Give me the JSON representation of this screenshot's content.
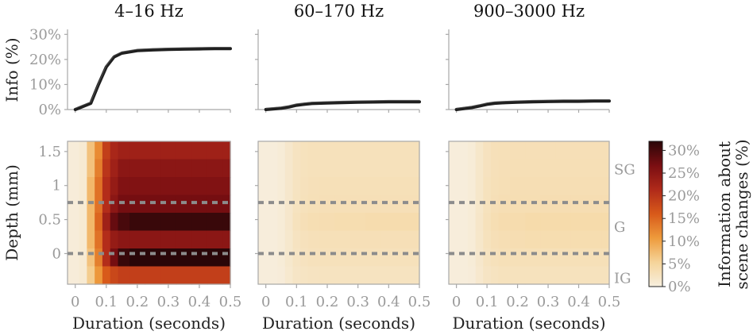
{
  "chart_data": {
    "type": "line+heatmap",
    "panel_titles": [
      "4–16 Hz",
      "60–170 Hz",
      "900–3000 Hz"
    ],
    "line_panels": {
      "ylabel": "Info (%)",
      "yticks": [
        "0%",
        "10%",
        "20%",
        "30%"
      ],
      "ylim": [
        0,
        32
      ],
      "x": [
        0,
        0.05,
        0.075,
        0.1,
        0.125,
        0.15,
        0.2,
        0.25,
        0.3,
        0.35,
        0.4,
        0.45,
        0.5
      ],
      "series": [
        {
          "values": [
            0,
            2.5,
            10,
            17,
            21,
            22.5,
            23.5,
            23.8,
            24,
            24.1,
            24.2,
            24.3,
            24.3
          ]
        },
        {
          "values": [
            0,
            0.5,
            1,
            1.7,
            2.1,
            2.4,
            2.6,
            2.8,
            2.9,
            3.0,
            3.1,
            3.1,
            3.1
          ]
        },
        {
          "values": [
            0,
            0.8,
            1.4,
            2.1,
            2.5,
            2.7,
            2.9,
            3.1,
            3.2,
            3.3,
            3.3,
            3.4,
            3.4
          ]
        }
      ]
    },
    "heatmap_panels": {
      "xlabel": "Duration (seconds)",
      "xticks": [
        "0",
        "0.1",
        "0.2",
        "0.3",
        "0.4",
        "0.5"
      ],
      "xlim": [
        -0.025,
        0.5
      ],
      "ylabel": "Depth (mm)",
      "yticks": [
        "0",
        "0.5",
        "1",
        "1.5"
      ],
      "ylim": [
        -0.45,
        1.65
      ],
      "dashed_lines_at_depth": [
        0,
        0.75
      ],
      "layer_labels": [
        "SG",
        "G",
        "IG"
      ],
      "columns_x": [
        0,
        0.025,
        0.05,
        0.075,
        0.1,
        0.125,
        0.15,
        0.2,
        0.25,
        0.3,
        0.35,
        0.4,
        0.45,
        0.5
      ],
      "rows_depth": [
        1.5,
        1.25,
        1.0,
        0.75,
        0.5,
        0.25,
        0.0,
        -0.25
      ],
      "panels": [
        {
          "values": [
            [
              0.5,
              1,
              7,
              12,
              19,
              22,
              23,
              23,
              23,
              23,
              23,
              23,
              23,
              23
            ],
            [
              0.5,
              1,
              7,
              13,
              20,
              23,
              25,
              25,
              25,
              25,
              25,
              25,
              25,
              25
            ],
            [
              0.5,
              1,
              8,
              14,
              21,
              24,
              26,
              26,
              26,
              26,
              26,
              26,
              26,
              26
            ],
            [
              0.5,
              1,
              8,
              14,
              21,
              25,
              27,
              27,
              27,
              27,
              27,
              27,
              27,
              27
            ],
            [
              0.5,
              1,
              8,
              15,
              23,
              28,
              30,
              31,
              31,
              31,
              31,
              31,
              31,
              31
            ],
            [
              0.5,
              1,
              8,
              14,
              21,
              24,
              25,
              25,
              25,
              25,
              25,
              25,
              25,
              25
            ],
            [
              0.5,
              1,
              7,
              13,
              21,
              27,
              31,
              32,
              32,
              32,
              32,
              32,
              32,
              32
            ],
            [
              0.5,
              1,
              6,
              11,
              16,
              18,
              19,
              19,
              19,
              19,
              19,
              19,
              19,
              19
            ]
          ]
        },
        {
          "values": [
            [
              0.3,
              0.3,
              0.6,
              1.5,
              2.3,
              2.6,
              2.8,
              2.8,
              2.8,
              2.8,
              2.8,
              2.8,
              2.8,
              2.8
            ],
            [
              0.3,
              0.3,
              0.6,
              1.5,
              2.3,
              2.6,
              2.8,
              2.8,
              2.8,
              2.8,
              2.8,
              2.8,
              2.8,
              2.8
            ],
            [
              0.3,
              0.3,
              0.6,
              1.5,
              2.3,
              2.7,
              2.9,
              3.0,
              3.0,
              3.0,
              3.0,
              3.0,
              3.0,
              3.0
            ],
            [
              0.3,
              0.3,
              0.6,
              1.5,
              2.4,
              2.8,
              3.0,
              3.1,
              3.1,
              3.1,
              3.1,
              3.1,
              3.1,
              3.1
            ],
            [
              0.3,
              0.3,
              0.6,
              1.5,
              2.6,
              3.1,
              3.4,
              3.5,
              3.6,
              3.6,
              3.8,
              3.8,
              3.8,
              3.8
            ],
            [
              0.3,
              0.3,
              0.6,
              1.4,
              2.3,
              2.7,
              2.9,
              3.0,
              3.0,
              3.1,
              3.1,
              3.1,
              3.1,
              3.1
            ],
            [
              0.3,
              0.3,
              0.6,
              1.4,
              2.2,
              2.5,
              2.7,
              2.8,
              2.8,
              2.8,
              2.8,
              2.8,
              2.8,
              2.8
            ],
            [
              0.3,
              0.3,
              0.5,
              1.2,
              1.9,
              2.2,
              2.3,
              2.4,
              2.4,
              2.4,
              2.4,
              2.4,
              2.4,
              2.4
            ]
          ]
        },
        {
          "values": [
            [
              0.3,
              0.3,
              0.6,
              1.6,
              2.5,
              2.9,
              3.0,
              3.1,
              3.1,
              3.1,
              3.1,
              3.1,
              3.1,
              3.1
            ],
            [
              0.3,
              0.3,
              0.6,
              1.6,
              2.5,
              2.9,
              3.1,
              3.2,
              3.2,
              3.2,
              3.2,
              3.2,
              3.2,
              3.2
            ],
            [
              0.3,
              0.3,
              0.6,
              1.6,
              2.6,
              3.0,
              3.2,
              3.3,
              3.3,
              3.3,
              3.3,
              3.3,
              3.3,
              3.3
            ],
            [
              0.3,
              0.3,
              0.6,
              1.6,
              2.6,
              3.1,
              3.3,
              3.4,
              3.4,
              3.5,
              3.5,
              3.5,
              3.5,
              3.5
            ],
            [
              0.3,
              0.3,
              0.6,
              1.7,
              2.8,
              3.4,
              3.7,
              3.8,
              4.0,
              4.0,
              4.0,
              4.0,
              4.0,
              4.0
            ],
            [
              0.3,
              0.3,
              0.6,
              1.6,
              2.6,
              3.1,
              3.3,
              3.5,
              3.6,
              3.6,
              3.6,
              3.6,
              3.6,
              3.6
            ],
            [
              0.3,
              0.3,
              0.6,
              1.5,
              2.4,
              2.8,
              3.0,
              3.0,
              3.0,
              3.0,
              3.0,
              3.0,
              3.0,
              3.0
            ],
            [
              0.3,
              0.3,
              0.5,
              1.3,
              2.1,
              2.4,
              2.6,
              2.6,
              2.6,
              2.6,
              2.6,
              2.6,
              2.6,
              2.6
            ]
          ]
        }
      ]
    },
    "colorbar": {
      "label_lines": [
        "Information about",
        "scene changes (%)"
      ],
      "ticks": [
        "0%",
        "5%",
        "10%",
        "15%",
        "20%",
        "25%",
        "30%"
      ],
      "range": [
        0,
        32
      ],
      "colormap": [
        "#f7efdf",
        "#f5d49a",
        "#ee9b3c",
        "#d85a1a",
        "#b02a1a",
        "#7a0e12",
        "#2a0608"
      ]
    },
    "colors": {
      "line": "#1f1f1f",
      "dashed": "#8c8c8c",
      "axis": "#a8a8a8"
    }
  }
}
